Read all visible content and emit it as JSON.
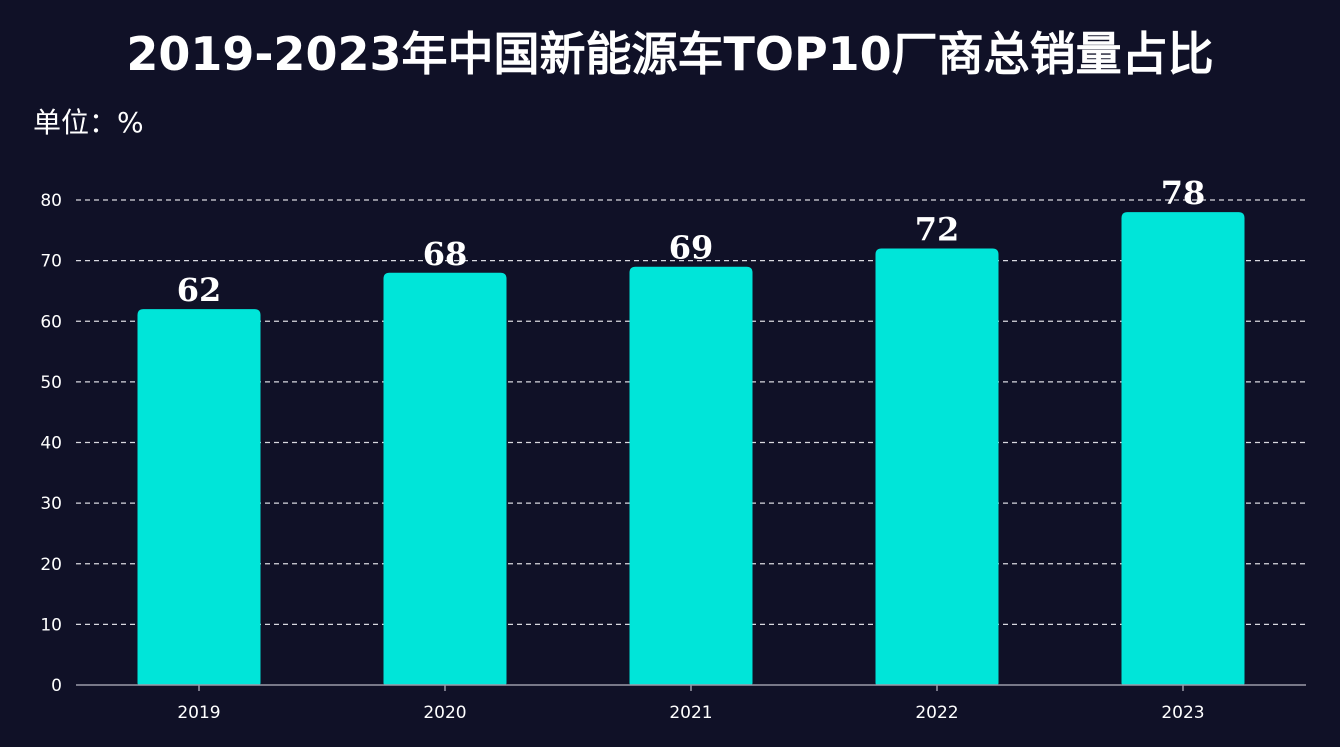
{
  "title": "2019-2023年中国新能源车TOP10厂商总销量占比",
  "unit_label": "单位：%",
  "colors": {
    "background": "#101127",
    "bar": "#00e5d9",
    "text": "#ffffff",
    "grid": "#d9d9e0",
    "axis": "#9a9aa8"
  },
  "chart_data": {
    "type": "bar",
    "title": "2019-2023年中国新能源车TOP10厂商总销量占比",
    "xlabel": "",
    "ylabel": "单位：%",
    "categories": [
      "2019",
      "2020",
      "2021",
      "2022",
      "2023"
    ],
    "values": [
      62,
      68,
      69,
      72,
      78
    ],
    "data_labels": [
      "62",
      "68",
      "69",
      "72",
      "78"
    ],
    "ylim": [
      0,
      80
    ],
    "yticks": [
      0,
      10,
      20,
      30,
      40,
      50,
      60,
      70,
      80
    ],
    "ytick_labels": [
      "0",
      "10",
      "20",
      "30",
      "40",
      "50",
      "60",
      "70",
      "80"
    ],
    "grid": true,
    "legend": "none"
  }
}
